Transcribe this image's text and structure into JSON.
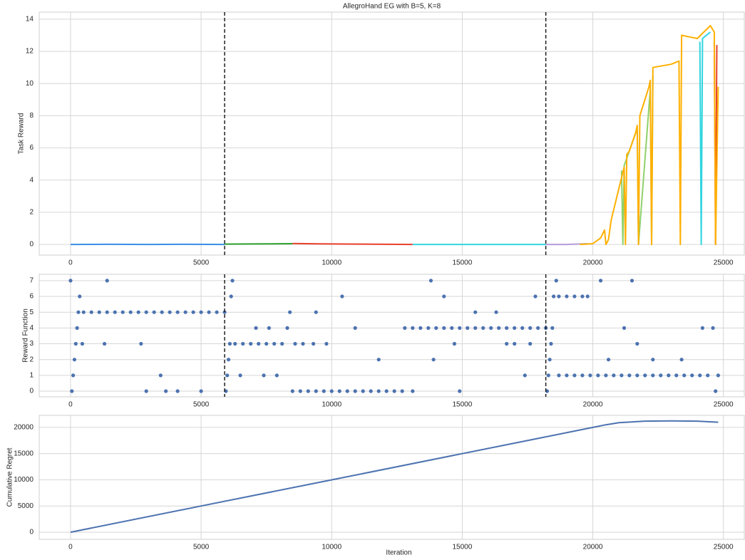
{
  "chart_data": [
    {
      "type": "line",
      "title": "AllegroHand EG with B=5, K=8",
      "ylabel": "Task Reward",
      "xlim": [
        -1200,
        25800
      ],
      "ylim": [
        -0.66,
        14.44
      ],
      "xticks": [
        0,
        5000,
        10000,
        15000,
        20000,
        25000
      ],
      "yticks": [
        0,
        2,
        4,
        6,
        8,
        10,
        12,
        14
      ],
      "grid": true,
      "vlines": [
        5900,
        18200
      ],
      "series": [
        {
          "color": "#3a8ee6",
          "x": [
            0,
            1500,
            3000,
            4500,
            5900
          ],
          "values": [
            0,
            0.01,
            0,
            0.01,
            0
          ]
        },
        {
          "color": "#2ca02c",
          "x": [
            5900,
            7000,
            8500
          ],
          "values": [
            0.02,
            0.03,
            0.05
          ]
        },
        {
          "color": "#e8412c",
          "x": [
            8500,
            9500,
            11000,
            13100
          ],
          "values": [
            0.06,
            0.04,
            0.02,
            0
          ]
        },
        {
          "color": "#30d5e0",
          "x": [
            13100,
            15000,
            17000,
            18200
          ],
          "values": [
            0,
            0,
            0,
            0
          ]
        },
        {
          "color": "#b39ddb",
          "x": [
            18200,
            19000,
            19800
          ],
          "values": [
            0,
            0,
            0.05
          ]
        },
        {
          "color": "#8fd16b",
          "x": [
            21100,
            21150,
            21200,
            21700,
            21750,
            22200,
            22250,
            22300
          ],
          "values": [
            4.6,
            0,
            4.9,
            7.2,
            0,
            9.6,
            0,
            10.5
          ]
        },
        {
          "color": "#30d5e0",
          "x": [
            24100,
            24150,
            24200,
            24500
          ],
          "values": [
            12.6,
            0,
            12.8,
            13.2
          ]
        },
        {
          "color": "#e8412c",
          "x": [
            24650,
            24700,
            24750
          ],
          "values": [
            12.6,
            0,
            12.4
          ]
        },
        {
          "color": "#ffb000",
          "x": [
            19500,
            20000,
            20300,
            20450,
            20500,
            20600,
            20700,
            21000,
            21200,
            21250,
            21300,
            21400,
            21650,
            21700,
            21750,
            21800,
            22150,
            22200,
            22250,
            22300,
            23000,
            23300,
            23350,
            23400,
            23700,
            24000,
            24500,
            24650,
            24700,
            24800
          ],
          "values": [
            0,
            0.05,
            0.4,
            0.9,
            0,
            0.3,
            1.5,
            3.5,
            4.8,
            0,
            5.6,
            5.8,
            7,
            7.4,
            0,
            8,
            9.8,
            10.2,
            0,
            11,
            11.2,
            11.4,
            0,
            13,
            12.9,
            12.8,
            13.6,
            13.2,
            0,
            9.8
          ]
        }
      ]
    },
    {
      "type": "scatter",
      "ylabel": "Reward Function",
      "xlim": [
        -1200,
        25800
      ],
      "ylim": [
        -0.36,
        7.4
      ],
      "xticks": [
        0,
        5000,
        10000,
        15000,
        20000,
        25000
      ],
      "yticks": [
        0,
        1,
        2,
        3,
        4,
        5,
        6,
        7
      ],
      "grid": true,
      "vlines": [
        5900,
        18200
      ],
      "series": [
        {
          "color": "#4c72b0",
          "x": [
            500,
            800,
            1100,
            1400,
            1700,
            2000,
            2300,
            2600,
            2900,
            3200,
            3500,
            3800,
            4100,
            4400,
            4700,
            5000,
            5300,
            5600,
            5900,
            6300,
            6600,
            6900,
            7200,
            7500,
            7800,
            8100,
            8500,
            8800,
            9100,
            9400,
            9700,
            10000,
            10300,
            10600,
            10900,
            11200,
            11500,
            11800,
            12100,
            12400,
            12700,
            13100,
            13100,
            13400,
            13700,
            14000,
            14300,
            14600,
            14900,
            15200,
            15500,
            15800,
            16100,
            16400,
            16700,
            17000,
            17300,
            17600,
            17900,
            18200,
            18700,
            19000,
            19300,
            19600,
            19800,
            19600,
            19900,
            20200,
            20500,
            20800,
            21100,
            21400,
            21700,
            22000,
            22300,
            22600,
            22900,
            23200,
            23500,
            23800,
            24100,
            24400,
            24800,
            0,
            50,
            100,
            150,
            200,
            250,
            300,
            350,
            450,
            1300,
            1400,
            2700,
            2900,
            3450,
            3650,
            4100,
            5000,
            5950,
            6000,
            6050,
            6100,
            6150,
            6200,
            6500,
            7100,
            7400,
            7600,
            7900,
            8300,
            8400,
            8600,
            8900,
            9300,
            9400,
            9800,
            10400,
            10900,
            11800,
            12800,
            13800,
            13900,
            14300,
            14700,
            14900,
            15500,
            16300,
            16700,
            17000,
            17400,
            17600,
            17800,
            18250,
            18300,
            18350,
            18400,
            18450,
            18500,
            18600,
            18700,
            19000,
            19300,
            20300,
            20600,
            21200,
            21500,
            21700,
            22300,
            23400,
            24200,
            24600,
            24700
          ],
          "values": [
            5,
            5,
            5,
            5,
            5,
            5,
            5,
            5,
            5,
            5,
            5,
            5,
            5,
            5,
            5,
            5,
            5,
            5,
            5,
            3,
            3,
            3,
            3,
            3,
            3,
            3,
            0,
            0,
            0,
            0,
            0,
            0,
            0,
            0,
            0,
            0,
            0,
            0,
            0,
            0,
            0,
            0,
            4,
            4,
            4,
            4,
            4,
            4,
            4,
            4,
            4,
            4,
            4,
            4,
            4,
            4,
            4,
            4,
            4,
            4,
            6,
            6,
            6,
            6,
            6,
            1,
            1,
            1,
            1,
            1,
            1,
            1,
            1,
            1,
            1,
            1,
            1,
            1,
            1,
            1,
            1,
            1,
            1,
            7,
            0,
            1,
            2,
            3,
            4,
            5,
            6,
            3,
            3,
            7,
            3,
            0,
            1,
            0,
            0,
            0,
            0,
            1,
            2,
            3,
            6,
            7,
            1,
            4,
            1,
            4,
            1,
            4,
            5,
            3,
            3,
            3,
            5,
            3,
            6,
            4,
            2,
            4,
            7,
            2,
            6,
            3,
            0,
            5,
            5,
            3,
            3,
            1,
            3,
            6,
            0,
            1,
            2,
            3,
            4,
            6,
            7,
            1,
            1,
            1,
            7,
            2,
            4,
            7,
            3,
            2,
            2,
            4,
            4,
            0
          ]
        }
      ]
    },
    {
      "type": "line",
      "ylabel": "Cumulative Regret",
      "xlabel": "Iteration",
      "xlim": [
        -1200,
        25800
      ],
      "ylim": [
        -1360,
        22300
      ],
      "xticks": [
        0,
        5000,
        10000,
        15000,
        20000,
        25000
      ],
      "yticks": [
        0,
        5000,
        10000,
        15000,
        20000
      ],
      "grid": true,
      "series": [
        {
          "color": "#4c72b0",
          "x": [
            0,
            5000,
            10000,
            15000,
            18000,
            20000,
            20500,
            21000,
            22000,
            23000,
            24000,
            24800
          ],
          "values": [
            0,
            5000,
            10000,
            15000,
            18000,
            20000,
            20500,
            20900,
            21200,
            21250,
            21200,
            21000
          ]
        }
      ]
    }
  ]
}
